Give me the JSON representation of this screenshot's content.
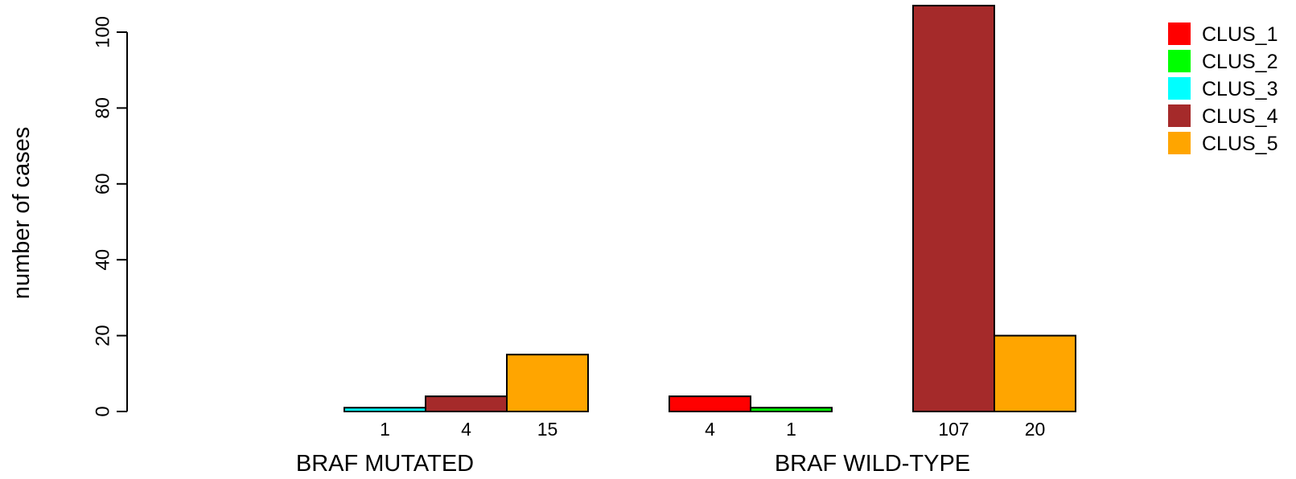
{
  "chart_data": {
    "type": "bar",
    "ylabel": "number of cases",
    "ylim": [
      0,
      107
    ],
    "y_ticks": [
      "0",
      "20",
      "40",
      "60",
      "80",
      "100"
    ],
    "y_tick_values": [
      0,
      20,
      40,
      60,
      80,
      100
    ],
    "categories": [
      "BRAF MUTATED",
      "BRAF WILD-TYPE"
    ],
    "grid": false,
    "legend_position": "top-right",
    "series": [
      {
        "name": "CLUS_1",
        "color": "#FF0000",
        "values": [
          0,
          4
        ],
        "labels": [
          "",
          "4"
        ]
      },
      {
        "name": "CLUS_2",
        "color": "#00FF00",
        "values": [
          0,
          1
        ],
        "labels": [
          "",
          "1"
        ]
      },
      {
        "name": "CLUS_3",
        "color": "#00FFFF",
        "values": [
          1,
          0
        ],
        "labels": [
          "1",
          ""
        ]
      },
      {
        "name": "CLUS_4",
        "color": "#A52A2A",
        "values": [
          4,
          107
        ],
        "labels": [
          "4",
          "107"
        ]
      },
      {
        "name": "CLUS_5",
        "color": "#FFA500",
        "values": [
          15,
          20
        ],
        "labels": [
          "15",
          "20"
        ]
      }
    ]
  }
}
